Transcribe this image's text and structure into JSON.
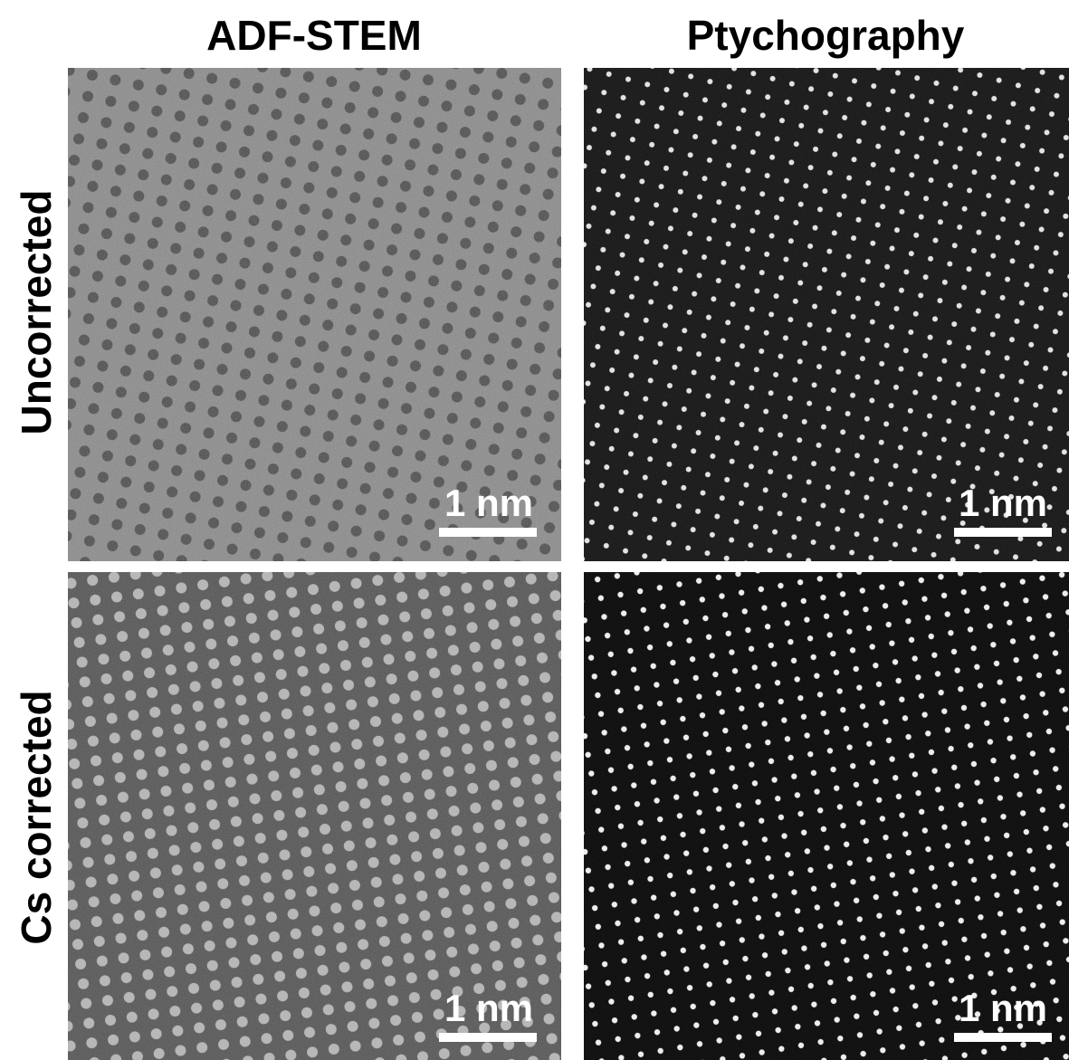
{
  "columns": [
    "ADF-STEM",
    "Ptychography"
  ],
  "rows": [
    "Uncorrected",
    "Cs corrected"
  ],
  "panels": [
    {
      "scale_bar": "1 nm"
    },
    {
      "scale_bar": "1 nm"
    },
    {
      "scale_bar": "1 nm"
    },
    {
      "scale_bar": "1 nm"
    }
  ]
}
